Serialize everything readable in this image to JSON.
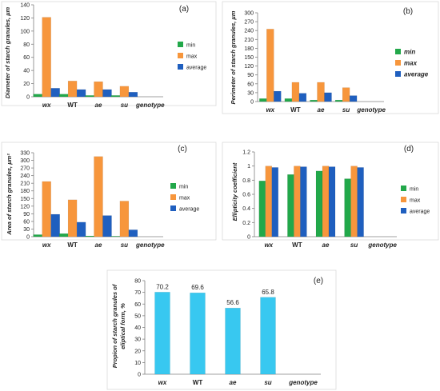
{
  "colors": {
    "min": "#22a84a",
    "max": "#f7963c",
    "average": "#1f5fbf",
    "ellipse": "#38c8f0"
  },
  "chart_data": [
    {
      "id": "a",
      "type": "bar",
      "panel_label": "(a)",
      "ylabel": "Diameter of starch granules, µm",
      "categories": [
        "wx",
        "WT",
        "ae",
        "su",
        "genotype"
      ],
      "category_style": [
        "bold-italic",
        "bold",
        "bold-italic",
        "bold-italic",
        "bold-italic"
      ],
      "ylim": [
        0,
        140
      ],
      "yticks": [
        0,
        20,
        40,
        60,
        80,
        100,
        120,
        140
      ],
      "series": [
        {
          "name": "min",
          "color_key": "min",
          "values": [
            4,
            4,
            2,
            2,
            null
          ]
        },
        {
          "name": "max",
          "color_key": "max",
          "values": [
            121,
            24,
            23,
            16,
            null
          ]
        },
        {
          "name": "average",
          "color_key": "average",
          "values": [
            13,
            11,
            11,
            7,
            null
          ]
        }
      ],
      "legend_style": "normal"
    },
    {
      "id": "b",
      "type": "bar",
      "panel_label": "(b)",
      "ylabel": "Perimeter of starch granules, µm",
      "categories": [
        "wx",
        "WT",
        "ae",
        "su",
        "genotype"
      ],
      "category_style": [
        "bold-italic",
        "bold",
        "bold-italic",
        "bold-italic",
        "bold-italic"
      ],
      "ylim": [
        0,
        300
      ],
      "yticks": [
        0,
        30,
        60,
        90,
        120,
        150,
        180,
        210,
        240,
        270,
        300
      ],
      "series": [
        {
          "name": "min",
          "color_key": "min",
          "values": [
            10,
            10,
            5,
            5,
            null
          ]
        },
        {
          "name": "max",
          "color_key": "max",
          "values": [
            245,
            65,
            65,
            47,
            null
          ]
        },
        {
          "name": "average",
          "color_key": "average",
          "values": [
            35,
            28,
            30,
            20,
            null
          ]
        }
      ],
      "legend_style": "bold-italic"
    },
    {
      "id": "c",
      "type": "bar",
      "panel_label": "(c)",
      "ylabel": "Area of starch granules, µm²",
      "categories": [
        "wx",
        "WT",
        "ae",
        "su",
        "genotype"
      ],
      "category_style": [
        "bold-italic",
        "bold",
        "bold-italic",
        "bold-italic",
        "bold-italic"
      ],
      "ylim": [
        0,
        330
      ],
      "yticks": [
        0,
        30,
        60,
        90,
        120,
        150,
        180,
        210,
        240,
        270,
        300,
        330
      ],
      "series": [
        {
          "name": "min",
          "color_key": "min",
          "values": [
            8,
            12,
            3,
            2,
            null
          ]
        },
        {
          "name": "max",
          "color_key": "max",
          "values": [
            217,
            145,
            315,
            140,
            null
          ]
        },
        {
          "name": "average",
          "color_key": "average",
          "values": [
            88,
            57,
            83,
            27,
            null
          ]
        }
      ],
      "legend_style": "normal"
    },
    {
      "id": "d",
      "type": "bar",
      "panel_label": "(d)",
      "ylabel": "Ellipticity coefficient",
      "categories": [
        "wx",
        "WT",
        "ae",
        "su",
        "genotype"
      ],
      "category_style": [
        "bold-italic",
        "bold",
        "bold-italic",
        "bold-italic",
        "bold-italic"
      ],
      "ylim": [
        0,
        1.2
      ],
      "yticks": [
        0,
        0.2,
        0.4,
        0.6,
        0.8,
        1,
        1.2
      ],
      "series": [
        {
          "name": "min",
          "color_key": "min",
          "values": [
            0.79,
            0.88,
            0.93,
            0.82,
            null
          ]
        },
        {
          "name": "max",
          "color_key": "max",
          "values": [
            1.0,
            1.0,
            1.0,
            1.0,
            null
          ]
        },
        {
          "name": "average",
          "color_key": "average",
          "values": [
            0.98,
            0.99,
            0.99,
            0.98,
            null
          ]
        }
      ],
      "legend_style": "normal"
    },
    {
      "id": "e",
      "type": "bar",
      "panel_label": "(e)",
      "ylabel_lines": [
        "Propion of starch granules of",
        "eliptical form, %"
      ],
      "categories": [
        "wx",
        "WT",
        "ae",
        "su",
        "genotype"
      ],
      "category_style": [
        "bold-italic",
        "bold",
        "bold-italic",
        "bold-italic",
        "bold-italic"
      ],
      "ylim": [
        0,
        80
      ],
      "yticks": [
        0,
        10,
        20,
        30,
        40,
        50,
        60,
        70,
        80
      ],
      "series": [
        {
          "color_key": "ellipse",
          "values": [
            70.2,
            69.6,
            56.6,
            65.8,
            null
          ],
          "data_labels": [
            "70.2",
            "69.6",
            "56.6",
            "65.8"
          ]
        }
      ]
    }
  ]
}
